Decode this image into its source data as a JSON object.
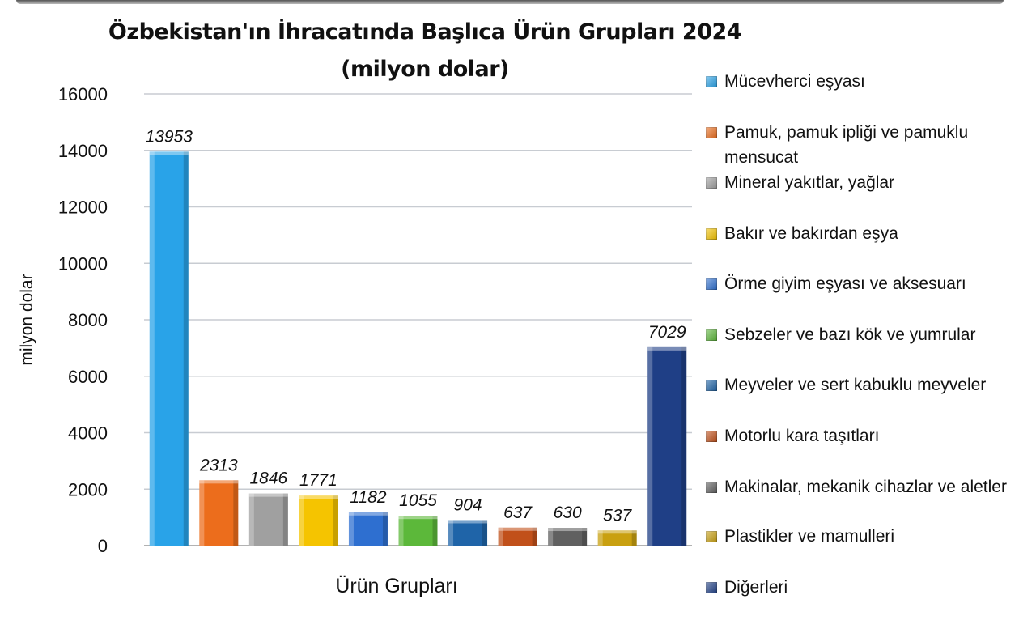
{
  "chart_data": {
    "type": "bar",
    "title": "Özbekistan'ın İhracatında Başlıca Ürün Grupları 2024",
    "subtitle": "(milyon dolar)",
    "xlabel": "Ürün Grupları",
    "ylabel": "milyon dolar",
    "ylim": [
      0,
      16000
    ],
    "yticks": [
      "0",
      "2000",
      "4000",
      "6000",
      "8000",
      "10000",
      "12000",
      "14000",
      "16000"
    ],
    "grid": true,
    "legend_position": "right",
    "categories": [
      "Mücevherci eşyası",
      "Pamuk, pamuk ipliği ve pamuklu mensucat",
      "Mineral yakıtlar, yağlar",
      "Bakır ve bakırdan eşya",
      "Örme giyim eşyası ve aksesuarı",
      "Sebzeler ve bazı kök ve yumrular",
      "Meyveler ve sert kabuklu meyveler",
      "Motorlu kara taşıtları",
      "Makinalar, mekanik cihazlar ve aletler",
      "Plastikler ve mamulleri",
      "Diğerleri"
    ],
    "values": [
      13953,
      2313,
      1846,
      1771,
      1182,
      1055,
      904,
      637,
      630,
      537,
      7029
    ],
    "labels": [
      "13953",
      "2313",
      "1846",
      "1771",
      "1182",
      "1055",
      "904",
      "637",
      "630",
      "537",
      "7029"
    ],
    "colors": [
      "#29a3e8",
      "#ec6d1c",
      "#a0a0a0",
      "#f5c400",
      "#2e6fd0",
      "#5cb83a",
      "#1f64a8",
      "#c1501a",
      "#606060",
      "#c9a010",
      "#1f3f86"
    ]
  }
}
